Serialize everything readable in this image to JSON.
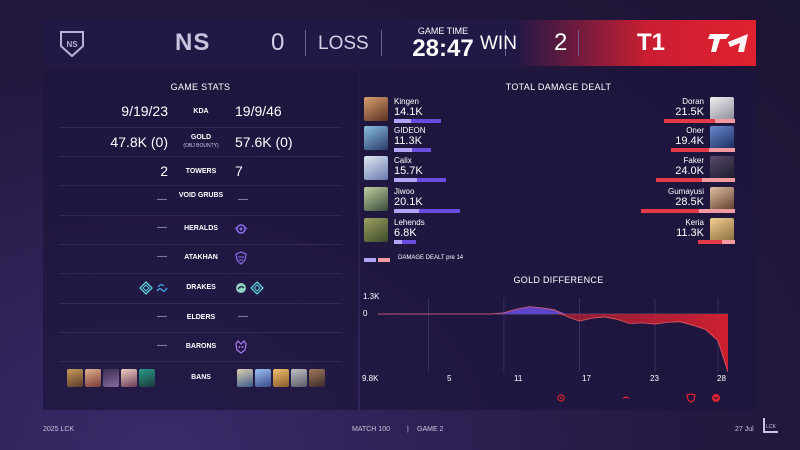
{
  "header": {
    "game_time_label": "GAME TIME",
    "game_time": "28:47",
    "team_left": {
      "name": "NS",
      "score": "0",
      "result": "LOSS"
    },
    "team_right": {
      "name": "T1",
      "score": "2",
      "result": "WIN"
    },
    "colors": {
      "left_bg": "#221846",
      "right_accent": "#e0212f"
    }
  },
  "game_stats": {
    "title": "GAME STATS",
    "rows": [
      {
        "label": "KDA",
        "left": "9/19/23",
        "right": "19/9/46"
      },
      {
        "label": "GOLD",
        "sublabel": "(OBJ BOUNTY)",
        "left": "47.8K (0)",
        "right": "57.6K (0)"
      },
      {
        "label": "TOWERS",
        "left": "2",
        "right": "7"
      },
      {
        "label": "VOID GRUBS",
        "left": "—",
        "right": "—"
      },
      {
        "label": "HERALDS",
        "left": "—",
        "right_icon": "herald-icon"
      },
      {
        "label": "ATAKHAN",
        "left": "—",
        "right_icon": "atakhan-icon"
      },
      {
        "label": "DRAKES",
        "left_icons": [
          "hextech-drake-icon",
          "ocean-drake-icon"
        ],
        "right_icons": [
          "cloud-drake-icon",
          "hextech-drake-icon"
        ]
      },
      {
        "label": "ELDERS",
        "left": "—",
        "right": "—"
      },
      {
        "label": "BARONS",
        "left": "—",
        "right_icon": "baron-icon"
      },
      {
        "label": "BANS",
        "left_icons": [
          "ban-1",
          "ban-2",
          "ban-3",
          "ban-4",
          "ban-5"
        ],
        "right_icons": [
          "ban-6",
          "ban-7",
          "ban-8",
          "ban-9",
          "ban-10"
        ]
      }
    ]
  },
  "damage": {
    "title": "TOTAL DAMAGE DEALT",
    "legend": "DAMAGE DEALT pre 14",
    "left_players": [
      {
        "name": "Kingen",
        "damage": "14.1K",
        "value": 14.1,
        "pre14": 5.0
      },
      {
        "name": "GIDEON",
        "damage": "11.3K",
        "value": 11.3,
        "pre14": 5.5
      },
      {
        "name": "Calix",
        "damage": "15.7K",
        "value": 15.7,
        "pre14": 7.0
      },
      {
        "name": "Jiwoo",
        "damage": "20.1K",
        "value": 20.1,
        "pre14": 7.5
      },
      {
        "name": "Lehends",
        "damage": "6.8K",
        "value": 6.8,
        "pre14": 2.5
      }
    ],
    "right_players": [
      {
        "name": "Doran",
        "damage": "21.5K",
        "value": 21.5,
        "pre14": 6.0
      },
      {
        "name": "Oner",
        "damage": "19.4K",
        "value": 19.4,
        "pre14": 8.0
      },
      {
        "name": "Faker",
        "damage": "24.0K",
        "value": 24.0,
        "pre14": 10.0
      },
      {
        "name": "Gumayusi",
        "damage": "28.5K",
        "value": 28.5,
        "pre14": 11.0
      },
      {
        "name": "Keria",
        "damage": "11.3K",
        "value": 11.3,
        "pre14": 4.0
      }
    ]
  },
  "gold_difference": {
    "title": "GOLD DIFFERENCE",
    "y_top_label": "1.3K",
    "y_zero_label": "0",
    "x_labels": [
      "9.8K",
      "5",
      "11",
      "17",
      "23",
      "28"
    ],
    "minutes": [
      1,
      2,
      3,
      4,
      5,
      6,
      7,
      8,
      9,
      10,
      11,
      12,
      13,
      14,
      15,
      16,
      17,
      18,
      19,
      20,
      21,
      22,
      23,
      24,
      25,
      26,
      27,
      28,
      28.8
    ],
    "values": [
      0,
      0,
      0,
      0,
      0,
      0,
      0,
      0,
      0,
      0,
      100,
      400,
      600,
      500,
      350,
      -400,
      -1200,
      -700,
      -500,
      -900,
      -1600,
      -1500,
      -1700,
      -1400,
      -1300,
      -1900,
      -2600,
      -4500,
      -9800
    ],
    "events": [
      "herald-icon",
      "drake-icon",
      "atakhan-icon",
      "baron-icon"
    ]
  },
  "footer": {
    "league": "2025 LCK",
    "match": "MATCH 100",
    "separator": "|",
    "game": "GAME 2",
    "date": "27 Jul"
  }
}
